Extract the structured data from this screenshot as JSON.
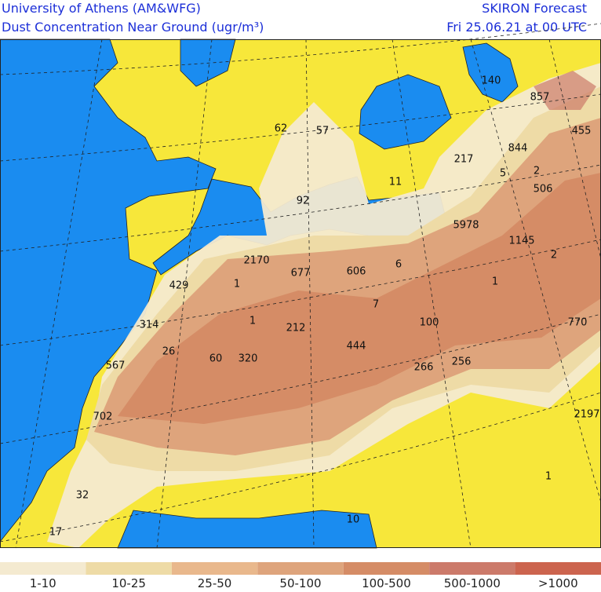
{
  "header": {
    "title_left": "University of Athens (AM&WFG)",
    "subtitle_left": "Dust Concentration Near Ground (ugr/m³)",
    "title_right": "SKIRON Forecast",
    "date": "Fri 25.06.21 at 00 UTC"
  },
  "map_labels": [
    140,
    857,
    455,
    62,
    57,
    844,
    217,
    5,
    2,
    506,
    11,
    92,
    5978,
    1145,
    2,
    2170,
    677,
    606,
    6,
    1,
    429,
    1,
    7,
    1,
    314,
    212,
    100,
    770,
    444,
    26,
    60,
    320,
    266,
    256,
    567,
    2197,
    702,
    1,
    32,
    10,
    17
  ],
  "legend": [
    {
      "label": "1-10",
      "color": "#f4ead0"
    },
    {
      "label": "10-25",
      "color": "#eedba6"
    },
    {
      "label": "25-50",
      "color": "#e9b88c"
    },
    {
      "label": "50-100",
      "color": "#dea47c"
    },
    {
      "label": "100-500",
      "color": "#d58c66"
    },
    {
      "label": "500-1000",
      "color": "#cc7a6a"
    },
    {
      "label": ">1000",
      "color": "#cc644e"
    }
  ]
}
